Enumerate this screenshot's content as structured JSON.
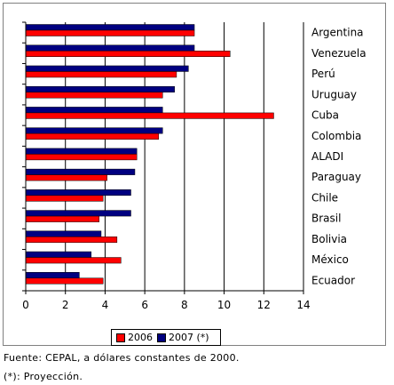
{
  "chart_data": {
    "type": "bar",
    "orientation": "horizontal",
    "categories": [
      "Argentina",
      "Venezuela",
      "Perú",
      "Uruguay",
      "Cuba",
      "Colombia",
      "ALADI",
      "Paraguay",
      "Chile",
      "Brasil",
      "Bolivia",
      "México",
      "Ecuador"
    ],
    "series": [
      {
        "name": "2006",
        "color": "#ff0000",
        "values": [
          8.5,
          10.3,
          7.6,
          6.9,
          12.5,
          6.7,
          5.6,
          4.1,
          3.9,
          3.7,
          4.6,
          4.8,
          3.9
        ]
      },
      {
        "name": "2007 (*)",
        "color": "#000080",
        "values": [
          8.5,
          8.5,
          8.2,
          7.5,
          6.9,
          6.9,
          5.6,
          5.5,
          5.3,
          5.3,
          3.8,
          3.3,
          2.7
        ]
      }
    ],
    "xlim": [
      0,
      14
    ],
    "x_ticks": [
      "0",
      "2",
      "4",
      "6",
      "8",
      "10",
      "12",
      "14"
    ],
    "grid": "vertical",
    "legend_position": "bottom"
  },
  "footer": {
    "source": "Fuente: CEPAL, a dólares constantes de 2000.",
    "note": "(*): Proyección."
  }
}
